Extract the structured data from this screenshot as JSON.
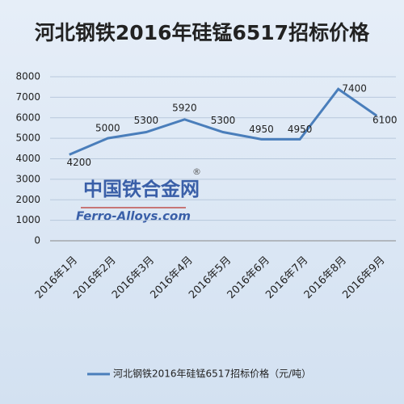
{
  "chart_data": {
    "type": "line",
    "title": "河北钢铁2016年硅锰6517招标价格",
    "categories": [
      "2016年1月",
      "2016年2月",
      "2016年3月",
      "2016年4月",
      "2016年5月",
      "2016年6月",
      "2016年7月",
      "2016年8月",
      "2016年9月"
    ],
    "series": [
      {
        "name": "河北钢铁2016年硅锰6517招标价格（元/吨）",
        "color": "#4a7ebb",
        "values": [
          4200,
          5000,
          5300,
          5920,
          5300,
          4950,
          4950,
          7400,
          6100
        ]
      }
    ],
    "ylim": [
      0,
      8000
    ],
    "yticks": [
      0,
      1000,
      2000,
      3000,
      4000,
      5000,
      6000,
      7000,
      8000
    ],
    "grid": true,
    "legend": "bottom",
    "watermark": {
      "cn": "中国铁合金网",
      "en": "Ferro-Alloys.com",
      "mark": "®"
    }
  }
}
